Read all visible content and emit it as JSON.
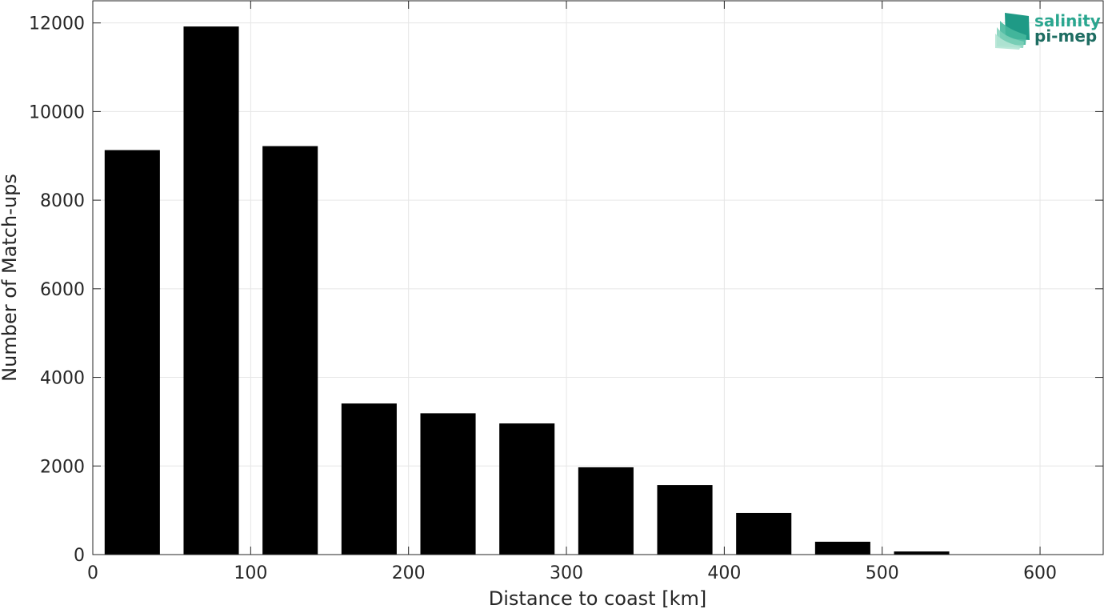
{
  "chart_data": {
    "type": "bar",
    "xlabel": "Distance to coast [km]",
    "ylabel": "Number of Match-ups",
    "xlim": [
      0,
      640
    ],
    "ylim": [
      0,
      12500
    ],
    "bin_width": 50,
    "bar_width_fraction": 0.7,
    "bar_color": "#000000",
    "grid": true,
    "x": [
      25,
      75,
      125,
      175,
      225,
      275,
      325,
      375,
      425,
      475,
      525
    ],
    "values": [
      9130,
      11920,
      9220,
      3410,
      3190,
      2960,
      1970,
      1570,
      940,
      290,
      70
    ],
    "xticks": [
      0,
      100,
      200,
      300,
      400,
      500,
      600
    ],
    "yticks": [
      0,
      2000,
      4000,
      6000,
      8000,
      10000,
      12000
    ]
  },
  "logo": {
    "line1": "salinity",
    "line2": "pi-mep",
    "color": "#2aa68f"
  }
}
